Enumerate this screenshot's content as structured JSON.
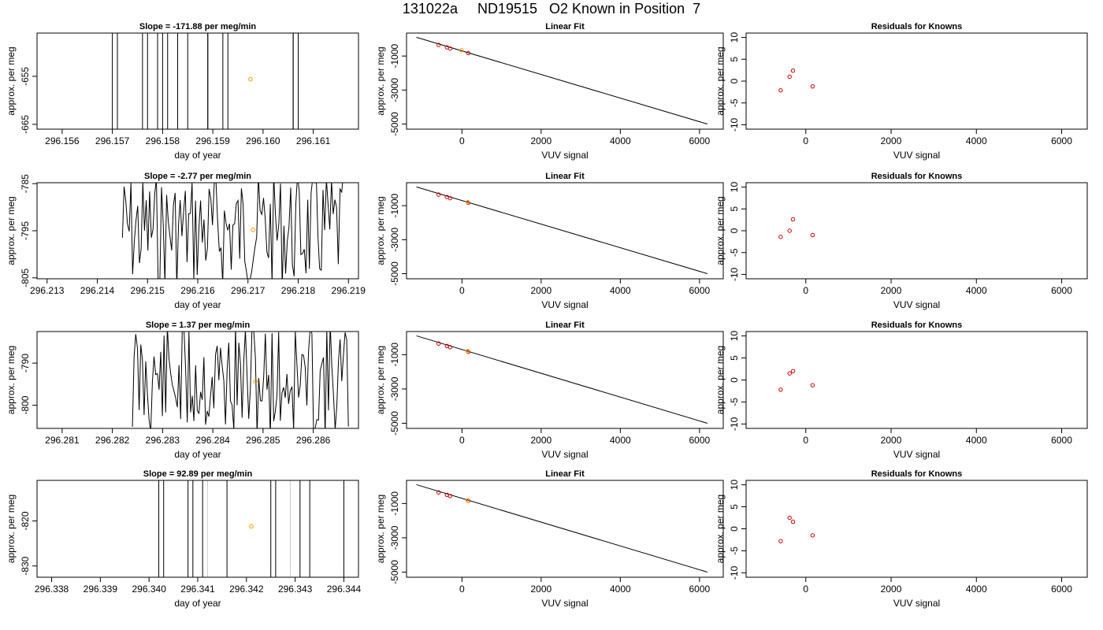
{
  "page": {
    "title": "131022a     ND19515   O2 Known in Position  7"
  },
  "chart_data": [
    {
      "type": "line",
      "row": 1,
      "col": 1,
      "title": "Slope =  -171.88  per meg/min",
      "xlabel": "day of year",
      "ylabel": "approx. per meg",
      "xlim": [
        296.1555,
        296.1619
      ],
      "ylim": [
        -666,
        -646
      ],
      "xticks": [
        296.156,
        296.157,
        296.158,
        296.159,
        296.16,
        296.161
      ],
      "xtick_labels": [
        "296.156",
        "296.157",
        "296.158",
        "296.159",
        "296.160",
        "296.161"
      ],
      "yticks": [
        -665,
        -655
      ],
      "ytick_labels": [
        "-665",
        "-655"
      ],
      "vlines": [
        296.157,
        296.1571,
        296.1576,
        296.1577,
        296.1579,
        296.158,
        296.1581,
        296.1583,
        296.1585,
        296.1589,
        296.1589,
        296.1592,
        296.1593,
        296.1606,
        296.1606,
        296.1607
      ],
      "point": {
        "x": 296.15975,
        "y": -655.6
      }
    },
    {
      "type": "scatter",
      "row": 1,
      "col": 2,
      "title": "Linear Fit",
      "xlabel": "VUV signal",
      "ylabel": "approx. per meg",
      "xlim": [
        -1400,
        6600
      ],
      "ylim": [
        -5300,
        350
      ],
      "xticks": [
        0,
        2000,
        4000,
        6000
      ],
      "xtick_labels": [
        "0",
        "2000",
        "4000",
        "6000"
      ],
      "yticks": [
        -5000,
        -3000,
        -1000
      ],
      "ytick_labels": [
        "-5000",
        "-3000",
        "-1000"
      ],
      "fit_line": [
        [
          -1150,
          100
        ],
        [
          6200,
          -5000
        ]
      ],
      "knowns": [
        {
          "x": -590,
          "y": -350
        },
        {
          "x": -380,
          "y": -490
        },
        {
          "x": -300,
          "y": -560
        },
        {
          "x": 160,
          "y": -830
        }
      ],
      "sample": {
        "x": -10,
        "y": -655
      }
    },
    {
      "type": "scatter",
      "row": 1,
      "col": 3,
      "title": "Residuals for Knowns",
      "xlabel": "VUV signal",
      "ylabel": "approx. per meg",
      "xlim": [
        -1400,
        6600
      ],
      "ylim": [
        -11,
        11
      ],
      "xticks": [
        0,
        2000,
        4000,
        6000
      ],
      "xtick_labels": [
        "0",
        "2000",
        "4000",
        "6000"
      ],
      "yticks": [
        -10,
        -5,
        0,
        5,
        10
      ],
      "ytick_labels": [
        "-10",
        "-5",
        "0",
        "5",
        "10"
      ],
      "residuals": [
        {
          "x": -590,
          "y": -2.1
        },
        {
          "x": -380,
          "y": 1.0
        },
        {
          "x": -300,
          "y": 2.4
        },
        {
          "x": 160,
          "y": -1.2
        }
      ]
    },
    {
      "type": "line",
      "row": 2,
      "col": 1,
      "title": "Slope =  -2.77  per meg/min",
      "xlabel": "day of year",
      "ylabel": "approx. per meg",
      "xlim": [
        296.2128,
        296.2192
      ],
      "ylim": [
        -805.2,
        -784.8
      ],
      "xticks": [
        296.213,
        296.214,
        296.215,
        296.216,
        296.217,
        296.218,
        296.219
      ],
      "xtick_labels": [
        "296.213",
        "296.214",
        "296.215",
        "296.216",
        "296.217",
        "296.218",
        "296.219"
      ],
      "yticks": [
        -805,
        -795,
        -785
      ],
      "ytick_labels": [
        "-805",
        "-795",
        "-785"
      ],
      "trace_xrange": [
        296.2145,
        296.2189
      ],
      "trace_seed": 7,
      "point": {
        "x": 296.2171,
        "y": -794.8
      }
    },
    {
      "type": "scatter",
      "row": 2,
      "col": 2,
      "title": "Linear Fit",
      "xlabel": "VUV signal",
      "ylabel": "approx. per meg",
      "xlim": [
        -1400,
        6600
      ],
      "ylim": [
        -5300,
        350
      ],
      "xticks": [
        0,
        2000,
        4000,
        6000
      ],
      "xtick_labels": [
        "0",
        "2000",
        "4000",
        "6000"
      ],
      "yticks": [
        -5000,
        -3000,
        -1000
      ],
      "ytick_labels": [
        "-5000",
        "-3000",
        "-1000"
      ],
      "fit_line": [
        [
          -1150,
          100
        ],
        [
          6200,
          -5000
        ]
      ],
      "knowns": [
        {
          "x": -590,
          "y": -350
        },
        {
          "x": -380,
          "y": -490
        },
        {
          "x": -300,
          "y": -560
        },
        {
          "x": 160,
          "y": -830
        }
      ],
      "sample": {
        "x": 150,
        "y": -795
      }
    },
    {
      "type": "scatter",
      "row": 2,
      "col": 3,
      "title": "Residuals for Knowns",
      "xlabel": "VUV signal",
      "ylabel": "approx. per meg",
      "xlim": [
        -1400,
        6600
      ],
      "ylim": [
        -11,
        11
      ],
      "xticks": [
        0,
        2000,
        4000,
        6000
      ],
      "xtick_labels": [
        "0",
        "2000",
        "4000",
        "6000"
      ],
      "yticks": [
        -10,
        -5,
        0,
        5,
        10
      ],
      "ytick_labels": [
        "-10",
        "-5",
        "0",
        "5",
        "10"
      ],
      "residuals": [
        {
          "x": -590,
          "y": -1.4
        },
        {
          "x": -380,
          "y": 0.0
        },
        {
          "x": -300,
          "y": 2.6
        },
        {
          "x": 160,
          "y": -1.0
        }
      ]
    },
    {
      "type": "line",
      "row": 3,
      "col": 1,
      "title": "Slope =  1.37  per meg/min",
      "xlabel": "day of year",
      "ylabel": "approx. per meg",
      "xlim": [
        296.2805,
        296.2869
      ],
      "ylim": [
        -805.5,
        -782.5
      ],
      "xticks": [
        296.281,
        296.282,
        296.283,
        296.284,
        296.285,
        296.286
      ],
      "xtick_labels": [
        "296.281",
        "296.282",
        "296.283",
        "296.284",
        "296.285",
        "296.286"
      ],
      "yticks": [
        -800,
        -790
      ],
      "ytick_labels": [
        "-800",
        "-790"
      ],
      "trace_xrange": [
        296.2824,
        296.2867
      ],
      "trace_seed": 11,
      "point": {
        "x": 296.28485,
        "y": -794.3
      }
    },
    {
      "type": "scatter",
      "row": 3,
      "col": 2,
      "title": "Linear Fit",
      "xlabel": "VUV signal",
      "ylabel": "approx. per meg",
      "xlim": [
        -1400,
        6600
      ],
      "ylim": [
        -5300,
        350
      ],
      "xticks": [
        0,
        2000,
        4000,
        6000
      ],
      "xtick_labels": [
        "0",
        "2000",
        "4000",
        "6000"
      ],
      "yticks": [
        -5000,
        -3000,
        -1000
      ],
      "ytick_labels": [
        "-5000",
        "-3000",
        "-1000"
      ],
      "fit_line": [
        [
          -1150,
          100
        ],
        [
          6200,
          -5000
        ]
      ],
      "knowns": [
        {
          "x": -590,
          "y": -350
        },
        {
          "x": -380,
          "y": -490
        },
        {
          "x": -300,
          "y": -560
        },
        {
          "x": 160,
          "y": -830
        }
      ],
      "sample": {
        "x": 150,
        "y": -795
      }
    },
    {
      "type": "scatter",
      "row": 3,
      "col": 3,
      "title": "Residuals for Knowns",
      "xlabel": "VUV signal",
      "ylabel": "approx. per meg",
      "xlim": [
        -1400,
        6600
      ],
      "ylim": [
        -11,
        11
      ],
      "xticks": [
        0,
        2000,
        4000,
        6000
      ],
      "xtick_labels": [
        "0",
        "2000",
        "4000",
        "6000"
      ],
      "yticks": [
        -10,
        -5,
        0,
        5,
        10
      ],
      "ytick_labels": [
        "-10",
        "-5",
        "0",
        "5",
        "10"
      ],
      "residuals": [
        {
          "x": -590,
          "y": -2.2
        },
        {
          "x": -380,
          "y": 1.5
        },
        {
          "x": -300,
          "y": 2.0
        },
        {
          "x": 160,
          "y": -1.2
        }
      ]
    },
    {
      "type": "line",
      "row": 4,
      "col": 1,
      "title": "Slope =  92.89  per meg/min",
      "xlabel": "day of year",
      "ylabel": "approx. per meg",
      "xlim": [
        296.3377,
        296.3443
      ],
      "ylim": [
        -832.5,
        -811
      ],
      "xticks": [
        296.338,
        296.339,
        296.34,
        296.341,
        296.342,
        296.343,
        296.344
      ],
      "xtick_labels": [
        "296.338",
        "296.339",
        "296.340",
        "296.341",
        "296.342",
        "296.343",
        "296.344"
      ],
      "yticks": [
        -830,
        -820
      ],
      "ytick_labels": [
        "-830",
        "-820"
      ],
      "vlines": [
        296.3402,
        296.3403,
        296.3408,
        296.3409,
        296.3411,
        296.3416,
        296.3425,
        296.3426,
        296.3431,
        296.3433,
        296.344
      ],
      "gray_vlines": [
        296.3412,
        296.3429
      ],
      "point": {
        "x": 296.3421,
        "y": -821.2
      }
    },
    {
      "type": "scatter",
      "row": 4,
      "col": 2,
      "title": "Linear Fit",
      "xlabel": "VUV signal",
      "ylabel": "approx. per meg",
      "xlim": [
        -1400,
        6600
      ],
      "ylim": [
        -5300,
        350
      ],
      "xticks": [
        0,
        2000,
        4000,
        6000
      ],
      "xtick_labels": [
        "0",
        "2000",
        "4000",
        "6000"
      ],
      "yticks": [
        -5000,
        -3000,
        -1000
      ],
      "ytick_labels": [
        "-5000",
        "-3000",
        "-1000"
      ],
      "fit_line": [
        [
          -1150,
          100
        ],
        [
          6200,
          -5000
        ]
      ],
      "knowns": [
        {
          "x": -590,
          "y": -350
        },
        {
          "x": -380,
          "y": -490
        },
        {
          "x": -300,
          "y": -560
        },
        {
          "x": 160,
          "y": -830
        }
      ],
      "sample": {
        "x": 150,
        "y": -820
      }
    },
    {
      "type": "scatter",
      "row": 4,
      "col": 3,
      "title": "Residuals for Knowns",
      "xlabel": "VUV signal",
      "ylabel": "approx. per meg",
      "xlim": [
        -1400,
        6600
      ],
      "ylim": [
        -11,
        11
      ],
      "xticks": [
        0,
        2000,
        4000,
        6000
      ],
      "xtick_labels": [
        "0",
        "2000",
        "4000",
        "6000"
      ],
      "yticks": [
        -10,
        -5,
        0,
        5,
        10
      ],
      "ytick_labels": [
        "-10",
        "-5",
        "0",
        "5",
        "10"
      ],
      "residuals": [
        {
          "x": -590,
          "y": -2.8
        },
        {
          "x": -380,
          "y": 2.5
        },
        {
          "x": -300,
          "y": 1.6
        },
        {
          "x": 160,
          "y": -1.5
        }
      ]
    }
  ],
  "colors": {
    "axis": "#000000",
    "trace": "#000000",
    "gray_line": "#cccccc",
    "sample_marker": "#ff9900",
    "known_marker": "#cc0000"
  }
}
